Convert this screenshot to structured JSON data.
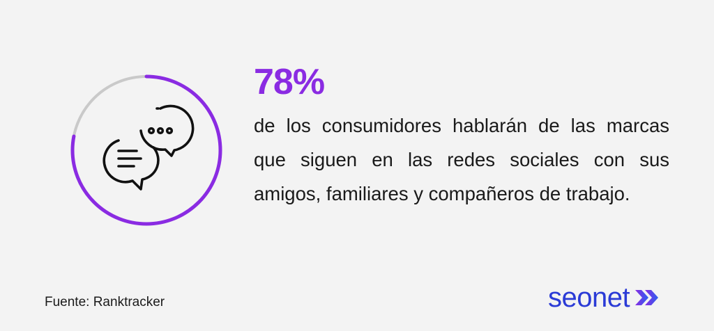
{
  "stat": {
    "value": "78%",
    "ring_fill_fraction": 0.78
  },
  "description": "de los consumidores hablarán de las marcas que siguen en las redes sociales con sus amigos, familiares y compañeros de trabajo.",
  "source": "Fuente: Ranktracker",
  "brand": {
    "name": "seonet"
  },
  "icons": {
    "center": "chat-bubbles-icon",
    "brand_mark": "double-chevron-icon"
  },
  "colors": {
    "accent": "#8a2be2",
    "ring_track": "#c9c9c9",
    "brand": "#2b3bd6",
    "background": "#f3f3f3",
    "text": "#1a1a1a"
  }
}
